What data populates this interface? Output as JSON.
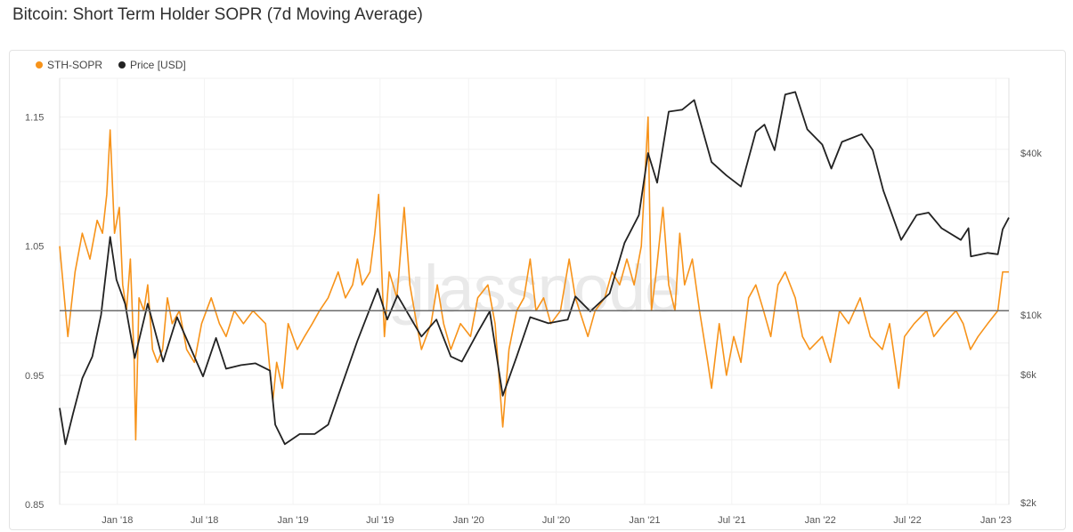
{
  "title": "Bitcoin: Short Term Holder SOPR (7d Moving Average)",
  "watermark": "glassnode",
  "chart_data": {
    "type": "line",
    "x_ticks": [
      "Jan '18",
      "Jul '18",
      "Jan '19",
      "Jul '19",
      "Jan '20",
      "Jul '20",
      "Jan '21",
      "Jul '21",
      "Jan '22",
      "Jul '22",
      "Jan '23"
    ],
    "x_tick_dates": [
      "2018-01-01",
      "2018-07-01",
      "2019-01-01",
      "2019-07-01",
      "2020-01-01",
      "2020-07-01",
      "2021-01-01",
      "2021-07-01",
      "2022-01-01",
      "2022-07-01",
      "2023-01-01"
    ],
    "x_range": [
      "2017-09-03",
      "2023-01-28"
    ],
    "y_left": {
      "ticks": [
        0.85,
        0.95,
        1.05,
        1.15
      ],
      "tick_labels": [
        "0.85",
        "0.95",
        "1.05",
        "1.15"
      ],
      "range": [
        0.85,
        1.18
      ]
    },
    "y_right": {
      "scale": "log",
      "ticks": [
        2000,
        6000,
        10000,
        40000
      ],
      "tick_labels": [
        "$2k",
        "$6k",
        "$10k",
        "$40k"
      ]
    },
    "reference_line": 1.0,
    "grid": true,
    "legend_position": "top-left",
    "series": [
      {
        "name": "STH-SOPR",
        "axis": "left",
        "color": "#f7931a",
        "points": [
          [
            "2017-09-03",
            1.05
          ],
          [
            "2017-09-20",
            0.98
          ],
          [
            "2017-10-05",
            1.03
          ],
          [
            "2017-10-20",
            1.06
          ],
          [
            "2017-11-05",
            1.04
          ],
          [
            "2017-11-20",
            1.07
          ],
          [
            "2017-12-01",
            1.06
          ],
          [
            "2017-12-10",
            1.09
          ],
          [
            "2017-12-17",
            1.14
          ],
          [
            "2017-12-26",
            1.06
          ],
          [
            "2018-01-05",
            1.08
          ],
          [
            "2018-01-12",
            1.02
          ],
          [
            "2018-01-20",
            1.0
          ],
          [
            "2018-01-28",
            1.04
          ],
          [
            "2018-02-05",
            0.96
          ],
          [
            "2018-02-08",
            0.9
          ],
          [
            "2018-02-15",
            1.01
          ],
          [
            "2018-02-25",
            1.0
          ],
          [
            "2018-03-05",
            1.02
          ],
          [
            "2018-03-15",
            0.97
          ],
          [
            "2018-03-25",
            0.96
          ],
          [
            "2018-04-05",
            0.97
          ],
          [
            "2018-04-15",
            1.01
          ],
          [
            "2018-04-25",
            0.99
          ],
          [
            "2018-05-10",
            1.0
          ],
          [
            "2018-05-25",
            0.97
          ],
          [
            "2018-06-10",
            0.96
          ],
          [
            "2018-06-25",
            0.99
          ],
          [
            "2018-07-15",
            1.01
          ],
          [
            "2018-08-01",
            0.99
          ],
          [
            "2018-08-15",
            0.98
          ],
          [
            "2018-09-01",
            1.0
          ],
          [
            "2018-09-20",
            0.99
          ],
          [
            "2018-10-10",
            1.0
          ],
          [
            "2018-11-05",
            0.99
          ],
          [
            "2018-11-20",
            0.93
          ],
          [
            "2018-11-28",
            0.96
          ],
          [
            "2018-12-10",
            0.94
          ],
          [
            "2018-12-22",
            0.99
          ],
          [
            "2019-01-10",
            0.97
          ],
          [
            "2019-01-25",
            0.98
          ],
          [
            "2019-02-10",
            0.99
          ],
          [
            "2019-02-25",
            1.0
          ],
          [
            "2019-03-15",
            1.01
          ],
          [
            "2019-04-05",
            1.03
          ],
          [
            "2019-04-20",
            1.01
          ],
          [
            "2019-05-05",
            1.02
          ],
          [
            "2019-05-15",
            1.04
          ],
          [
            "2019-05-25",
            1.02
          ],
          [
            "2019-06-10",
            1.03
          ],
          [
            "2019-06-20",
            1.06
          ],
          [
            "2019-06-28",
            1.09
          ],
          [
            "2019-07-10",
            0.98
          ],
          [
            "2019-07-20",
            1.03
          ],
          [
            "2019-08-05",
            1.01
          ],
          [
            "2019-08-20",
            1.08
          ],
          [
            "2019-09-01",
            1.02
          ],
          [
            "2019-09-15",
            0.99
          ],
          [
            "2019-09-25",
            0.97
          ],
          [
            "2019-10-15",
            0.99
          ],
          [
            "2019-10-28",
            1.02
          ],
          [
            "2019-11-10",
            0.99
          ],
          [
            "2019-11-25",
            0.97
          ],
          [
            "2019-12-15",
            0.99
          ],
          [
            "2020-01-05",
            0.98
          ],
          [
            "2020-01-20",
            1.01
          ],
          [
            "2020-02-10",
            1.02
          ],
          [
            "2020-02-25",
            0.99
          ],
          [
            "2020-03-12",
            0.91
          ],
          [
            "2020-03-25",
            0.97
          ],
          [
            "2020-04-10",
            1.0
          ],
          [
            "2020-04-25",
            1.01
          ],
          [
            "2020-05-08",
            1.04
          ],
          [
            "2020-05-20",
            1.0
          ],
          [
            "2020-06-05",
            1.01
          ],
          [
            "2020-06-20",
            0.99
          ],
          [
            "2020-07-10",
            1.0
          ],
          [
            "2020-07-28",
            1.04
          ],
          [
            "2020-08-10",
            1.01
          ],
          [
            "2020-09-05",
            0.98
          ],
          [
            "2020-09-20",
            1.0
          ],
          [
            "2020-10-10",
            1.01
          ],
          [
            "2020-10-25",
            1.03
          ],
          [
            "2020-11-10",
            1.02
          ],
          [
            "2020-11-25",
            1.04
          ],
          [
            "2020-12-10",
            1.02
          ],
          [
            "2020-12-25",
            1.05
          ],
          [
            "2021-01-08",
            1.15
          ],
          [
            "2021-01-15",
            1.0
          ],
          [
            "2021-01-25",
            1.03
          ],
          [
            "2021-02-08",
            1.08
          ],
          [
            "2021-02-20",
            1.02
          ],
          [
            "2021-03-05",
            1.0
          ],
          [
            "2021-03-15",
            1.06
          ],
          [
            "2021-03-25",
            1.02
          ],
          [
            "2021-04-10",
            1.04
          ],
          [
            "2021-04-25",
            1.0
          ],
          [
            "2021-05-12",
            0.96
          ],
          [
            "2021-05-20",
            0.94
          ],
          [
            "2021-06-05",
            0.99
          ],
          [
            "2021-06-20",
            0.95
          ],
          [
            "2021-07-05",
            0.98
          ],
          [
            "2021-07-20",
            0.96
          ],
          [
            "2021-08-05",
            1.01
          ],
          [
            "2021-08-20",
            1.02
          ],
          [
            "2021-09-05",
            1.0
          ],
          [
            "2021-09-20",
            0.98
          ],
          [
            "2021-10-05",
            1.02
          ],
          [
            "2021-10-20",
            1.03
          ],
          [
            "2021-11-10",
            1.01
          ],
          [
            "2021-11-25",
            0.98
          ],
          [
            "2021-12-10",
            0.97
          ],
          [
            "2022-01-05",
            0.98
          ],
          [
            "2022-01-22",
            0.96
          ],
          [
            "2022-02-10",
            1.0
          ],
          [
            "2022-03-01",
            0.99
          ],
          [
            "2022-03-25",
            1.01
          ],
          [
            "2022-04-15",
            0.98
          ],
          [
            "2022-05-10",
            0.97
          ],
          [
            "2022-05-25",
            0.99
          ],
          [
            "2022-06-13",
            0.94
          ],
          [
            "2022-06-25",
            0.98
          ],
          [
            "2022-07-15",
            0.99
          ],
          [
            "2022-08-10",
            1.0
          ],
          [
            "2022-08-25",
            0.98
          ],
          [
            "2022-09-15",
            0.99
          ],
          [
            "2022-10-10",
            1.0
          ],
          [
            "2022-10-25",
            0.99
          ],
          [
            "2022-11-09",
            0.97
          ],
          [
            "2022-11-25",
            0.98
          ],
          [
            "2022-12-15",
            0.99
          ],
          [
            "2023-01-05",
            1.0
          ],
          [
            "2023-01-15",
            1.03
          ],
          [
            "2023-01-28",
            1.03
          ]
        ]
      },
      {
        "name": "Price [USD]",
        "axis": "right",
        "color": "#222222",
        "points": [
          [
            "2017-09-03",
            4500
          ],
          [
            "2017-09-15",
            3300
          ],
          [
            "2017-10-01",
            4300
          ],
          [
            "2017-10-20",
            5800
          ],
          [
            "2017-11-10",
            7000
          ],
          [
            "2017-11-28",
            10000
          ],
          [
            "2017-12-17",
            19500
          ],
          [
            "2017-12-30",
            13500
          ],
          [
            "2018-01-17",
            11000
          ],
          [
            "2018-02-06",
            6900
          ],
          [
            "2018-03-05",
            11000
          ],
          [
            "2018-04-06",
            6700
          ],
          [
            "2018-05-05",
            9800
          ],
          [
            "2018-06-28",
            5900
          ],
          [
            "2018-07-25",
            8200
          ],
          [
            "2018-08-15",
            6300
          ],
          [
            "2018-09-15",
            6500
          ],
          [
            "2018-10-15",
            6600
          ],
          [
            "2018-11-14",
            6200
          ],
          [
            "2018-11-25",
            3900
          ],
          [
            "2018-12-15",
            3300
          ],
          [
            "2019-01-15",
            3600
          ],
          [
            "2019-02-15",
            3600
          ],
          [
            "2019-03-15",
            3900
          ],
          [
            "2019-04-05",
            5000
          ],
          [
            "2019-05-15",
            8000
          ],
          [
            "2019-06-26",
            12500
          ],
          [
            "2019-07-16",
            9600
          ],
          [
            "2019-08-06",
            11800
          ],
          [
            "2019-09-25",
            8300
          ],
          [
            "2019-10-26",
            9600
          ],
          [
            "2019-11-25",
            7000
          ],
          [
            "2019-12-18",
            6700
          ],
          [
            "2020-01-20",
            8600
          ],
          [
            "2020-02-14",
            10300
          ],
          [
            "2020-03-12",
            5000
          ],
          [
            "2020-04-10",
            7000
          ],
          [
            "2020-05-08",
            9800
          ],
          [
            "2020-06-15",
            9300
          ],
          [
            "2020-07-25",
            9600
          ],
          [
            "2020-08-10",
            11700
          ],
          [
            "2020-09-10",
            10300
          ],
          [
            "2020-10-20",
            12000
          ],
          [
            "2020-11-20",
            18500
          ],
          [
            "2020-12-20",
            23500
          ],
          [
            "2021-01-08",
            40000
          ],
          [
            "2021-01-27",
            31000
          ],
          [
            "2021-02-20",
            57000
          ],
          [
            "2021-03-20",
            58000
          ],
          [
            "2021-04-14",
            63000
          ],
          [
            "2021-05-20",
            37000
          ],
          [
            "2021-06-20",
            33000
          ],
          [
            "2021-07-20",
            30000
          ],
          [
            "2021-08-20",
            48000
          ],
          [
            "2021-09-07",
            51000
          ],
          [
            "2021-09-28",
            41000
          ],
          [
            "2021-10-20",
            66000
          ],
          [
            "2021-11-10",
            67500
          ],
          [
            "2021-12-05",
            49000
          ],
          [
            "2022-01-05",
            43000
          ],
          [
            "2022-01-24",
            35000
          ],
          [
            "2022-02-15",
            44000
          ],
          [
            "2022-03-28",
            47000
          ],
          [
            "2022-04-20",
            41000
          ],
          [
            "2022-05-12",
            29000
          ],
          [
            "2022-06-18",
            19000
          ],
          [
            "2022-07-20",
            23500
          ],
          [
            "2022-08-14",
            24000
          ],
          [
            "2022-09-10",
            21000
          ],
          [
            "2022-10-20",
            19000
          ],
          [
            "2022-11-05",
            21000
          ],
          [
            "2022-11-10",
            16500
          ],
          [
            "2022-12-15",
            17000
          ],
          [
            "2023-01-05",
            16800
          ],
          [
            "2023-01-15",
            20800
          ],
          [
            "2023-01-28",
            23000
          ]
        ]
      }
    ]
  }
}
